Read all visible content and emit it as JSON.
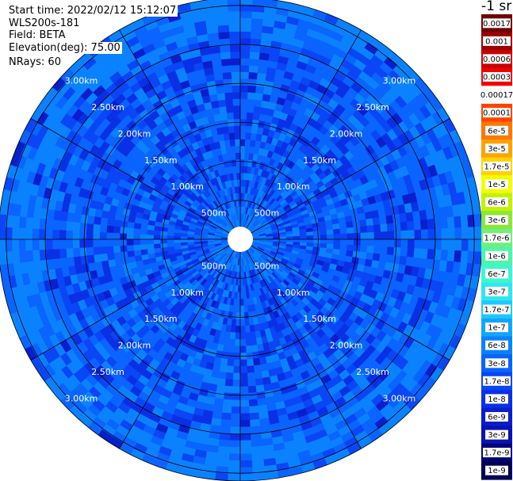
{
  "info": {
    "start_time": "Start time: 2022/02/12 15:12:07",
    "instrument": "WLS200s-181",
    "field": "Field: BETA",
    "elevation": "Elevation(deg): 75.00",
    "nrays": "NRays: 60"
  },
  "colorbar": {
    "title": "-1 sr",
    "labels": [
      "0.0017",
      "0.001",
      "0.0006",
      "0.0003",
      "0.00017",
      "0.0001",
      "6e-5",
      "3e-5",
      "1.7e-5",
      "1e-5",
      "6e-6",
      "3e-6",
      "1.7e-6",
      "1e-6",
      "6e-7",
      "3e-7",
      "1.7e-7",
      "1e-7",
      "6e-8",
      "3e-8",
      "1.7e-8",
      "1e-8",
      "6e-9",
      "3e-9",
      "1.7e-9",
      "1e-9"
    ],
    "colors": [
      "#6e0000",
      "#9a0000",
      "#c80000",
      "#f00000",
      "#ffffff",
      "#ff4400",
      "#ff7700",
      "#ffa200",
      "#ffd200",
      "#f2ff00",
      "#c3f200",
      "#8ce63a",
      "#6ef07a",
      "#4ef5a6",
      "#3cf7d0",
      "#32e6f0",
      "#1ec8ff",
      "#14a5ff",
      "#0a82ff",
      "#0a64ff",
      "#0a46f5",
      "#0a30e6",
      "#0a1ecc",
      "#0a12b0",
      "#00007a",
      "#000050"
    ]
  },
  "chart_data": {
    "type": "heatmap",
    "projection": "polar-ppi",
    "n_rays": 60,
    "range_rings_km": [
      0.5,
      1.0,
      1.5,
      2.0,
      2.5,
      3.0
    ],
    "range_labels": [
      "500m",
      "1.00km",
      "1.50km",
      "2.00km",
      "2.50km",
      "3.00km"
    ],
    "max_range_km": 3.1,
    "spokes_deg": [
      0,
      30,
      60,
      90,
      120,
      150,
      180,
      210,
      240,
      270,
      300,
      330
    ],
    "label_diagonals_deg": [
      45,
      135,
      225,
      315
    ],
    "grid": true,
    "value_range": [
      1e-09,
      0.0017
    ],
    "dominant_range": [
      1e-08,
      1e-07
    ]
  }
}
